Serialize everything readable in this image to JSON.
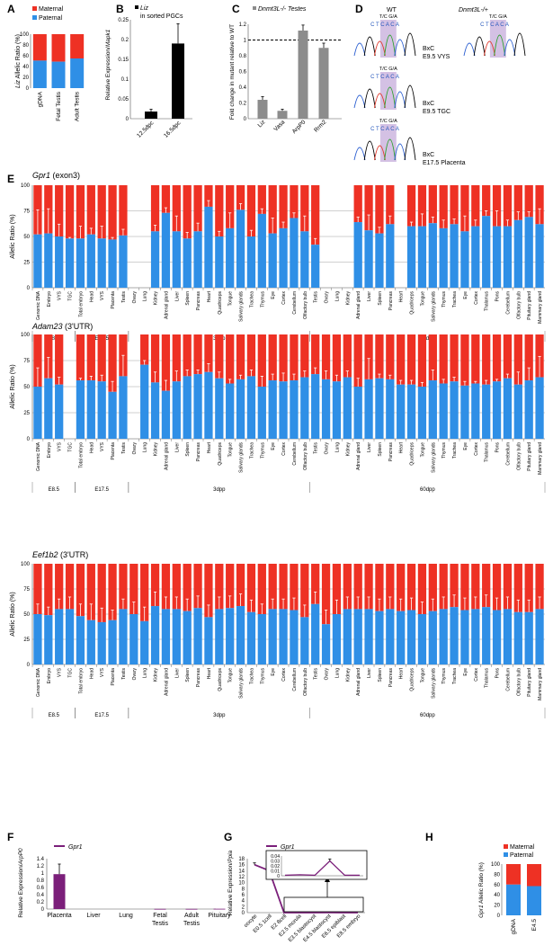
{
  "panel_letters": [
    "A",
    "B",
    "C",
    "D",
    "E",
    "F",
    "G",
    "H"
  ],
  "colors": {
    "maternal": "#ee3124",
    "paternal": "#2f8fe6",
    "dark": "#000000",
    "grey": "#8c8c8c",
    "purple": "#7b1f7a",
    "ax": "#555555"
  },
  "panelA": {
    "ylabel_pre": "Liz",
    "ylabel_post": " Allelic Ratio (%)",
    "legend": [
      "Maternal",
      "Paternal"
    ],
    "yticks": [
      "0",
      "20",
      "40",
      "60",
      "80",
      "100"
    ],
    "categories": [
      "gDNA",
      "Fetal Testis",
      "Adult Testis"
    ]
  },
  "panelB": {
    "ylabel_pre": "Relative Expression/",
    "ylabel_post": "Mapk1",
    "legend_line1_pre": "",
    "legend_line1_it": "Liz",
    "legend_line2": "in sorted PGCs",
    "yticks": [
      "0",
      "0.05",
      "0.1",
      "0.15",
      "0.2",
      "0.25"
    ],
    "categories": [
      "12.5dpc",
      "16.5dpc"
    ]
  },
  "panelC": {
    "legend": "Dnmt3L-/- Testes",
    "ylabel": "Fold change in mutant relative to WT",
    "yticks": [
      "0",
      "0.2",
      "0.4",
      "0.6",
      "0.8",
      "1",
      "1.2"
    ],
    "categories": [
      "Liz",
      "Vasa",
      "ArpP0",
      "Rrm2"
    ]
  },
  "panelD": {
    "wt_label": "WT",
    "mut_label": "Dnmt3L-/+",
    "bases": "C T C A C A",
    "polym": "T/C G/A",
    "rows": [
      "BxC E9.5 VYS",
      "BxC E9.5 TGC",
      "BxC E17.5 Placenta"
    ]
  },
  "panelE": {
    "ylabel": "Allelic Ratio (%)",
    "yticks": [
      "0",
      "25",
      "50",
      "75",
      "100"
    ],
    "titles": [
      {
        "gene": "Gpr1",
        "suffix": " (exon3)"
      },
      {
        "gene": "Adam23",
        "suffix": " (3'UTR)"
      },
      {
        "gene": "Eef1b2",
        "suffix": " (3'UTR)"
      }
    ],
    "tissues": [
      "Genomic DNA",
      "Embryo",
      "VYS",
      "TGC",
      "Total embryo",
      "Head",
      "VYS",
      "Placenta",
      "Testis",
      "Ovary",
      "Lung",
      "Kidney",
      "Adrenal gland",
      "Liver",
      "Spleen",
      "Pancreas",
      "Heart",
      "Quadriceps",
      "Tongue",
      "Salivary glands",
      "Trachea",
      "Thymus",
      "Eye",
      "Cortex",
      "Cerebellum",
      "Olfactory bulb",
      "Testis",
      "Ovary",
      "Lung",
      "Kidney",
      "Adrenal gland",
      "Liver",
      "Spleen",
      "Pancreas",
      "Heart",
      "Quadriceps",
      "Tongue",
      "Salivary glands",
      "Thymus",
      "Trachea",
      "Eye",
      "Cortex",
      "Thalamus",
      "Pons",
      "Cerebellum",
      "Olfactory bulb",
      "Pituitary gland",
      "Mammary gland"
    ],
    "groups": [
      "E8.5",
      "E17.5",
      "3dpp",
      "60dpp"
    ]
  },
  "panelF": {
    "legend": "Gpr1",
    "ylabel_pre": "Relative Expression/",
    "ylabel_post": "ArpP0",
    "yticks": [
      "0",
      "0.2",
      "0.4",
      "0.6",
      "0.8",
      "1",
      "1.2",
      "1.4"
    ],
    "categories": [
      "Placenta",
      "Liver",
      "Lung",
      "Fetal Testis",
      "Adult Testis",
      "Pituitary"
    ]
  },
  "panelG": {
    "legend": "Gpr1",
    "ylabel_pre": "Relative Expression/",
    "ylabel_post": "Ppia",
    "yticks": [
      "0",
      "2",
      "4",
      "6",
      "8",
      "10",
      "12",
      "14",
      "16",
      "18"
    ],
    "inset_yticks": [
      "0",
      "0.01",
      "0.02",
      "0.03",
      "0.04"
    ],
    "categories": [
      "oocyte",
      "E0.5 1cell",
      "E2 8cell",
      "E2.5 morula",
      "E3.5 blastocyst",
      "E4.5 blastocyst",
      "E6.5 epiblast",
      "E8.5 embryo"
    ]
  },
  "panelH": {
    "ylabel_pre": "Gpr1",
    "ylabel_post": " Allelic Ratio (%)",
    "legend": [
      "Maternal",
      "Paternal"
    ],
    "yticks": [
      "0",
      "20",
      "40",
      "60",
      "80",
      "100"
    ],
    "categories": [
      "gDNA",
      "E4.5"
    ]
  },
  "chart_data": [
    {
      "id": "A",
      "type": "bar",
      "stacked": true,
      "ylabel": "Liz Allelic Ratio (%)",
      "categories": [
        "gDNA",
        "Fetal Testis",
        "Adult Testis"
      ],
      "series": [
        {
          "name": "Paternal",
          "values": [
            51,
            49,
            55
          ]
        },
        {
          "name": "Maternal",
          "values": [
            49,
            51,
            45
          ]
        }
      ],
      "ylim": [
        0,
        100
      ],
      "legend": "top-left"
    },
    {
      "id": "B",
      "type": "bar",
      "ylabel": "Relative Expression/Mapk1",
      "series": [
        {
          "name": "Liz in sorted PGCs",
          "values": [
            0.018,
            0.19
          ]
        }
      ],
      "categories": [
        "12.5dpc",
        "16.5dpc"
      ],
      "errors": [
        0.006,
        0.05
      ],
      "ylim": [
        0,
        0.25
      ]
    },
    {
      "id": "C",
      "type": "bar",
      "ylabel": "Fold change in mutant relative to WT",
      "series": [
        {
          "name": "Dnmt3L-/- Testes",
          "values": [
            0.24,
            0.1,
            1.12,
            0.9
          ]
        }
      ],
      "categories": [
        "Liz",
        "Vasa",
        "ArpP0",
        "Rrm2"
      ],
      "errors": [
        0.04,
        0.02,
        0.07,
        0.06
      ],
      "ylim": [
        0,
        1.2
      ],
      "reference_line": 1
    },
    {
      "id": "E1",
      "type": "bar",
      "stacked": true,
      "title": "Gpr1 (exon3)",
      "ylabel": "Allelic Ratio (%)",
      "ylim": [
        0,
        100
      ],
      "paternal": [
        52,
        53,
        50,
        48,
        48,
        52,
        48,
        47,
        51,
        null,
        null,
        55,
        73,
        55,
        48,
        55,
        79,
        50,
        58,
        76,
        50,
        72,
        53,
        58,
        68,
        55,
        42,
        null,
        null,
        null,
        64,
        56,
        53,
        62,
        null,
        60,
        60,
        63,
        58,
        62,
        55,
        60,
        70,
        60,
        60,
        66,
        69,
        62
      ],
      "errors": [
        24,
        24,
        12,
        1,
        12,
        6,
        12,
        2,
        6,
        null,
        null,
        6,
        5,
        15,
        6,
        8,
        6,
        5,
        15,
        6,
        6,
        5,
        15,
        6,
        5,
        15,
        6,
        null,
        null,
        null,
        5,
        15,
        6,
        8,
        null,
        4,
        12,
        6,
        8,
        5,
        15,
        6,
        5,
        15,
        6,
        8,
        5,
        15
      ]
    },
    {
      "id": "E2",
      "type": "bar",
      "stacked": true,
      "title": "Adam23 (3'UTR)",
      "ylabel": "Allelic Ratio (%)",
      "ylim": [
        0,
        100
      ],
      "paternal": [
        50,
        58,
        52,
        null,
        56,
        56,
        55,
        45,
        60,
        null,
        71,
        54,
        46,
        55,
        60,
        62,
        64,
        58,
        53,
        57,
        60,
        50,
        56,
        55,
        56,
        59,
        62,
        57,
        55,
        59,
        50,
        57,
        58,
        57,
        52,
        52,
        50,
        56,
        53,
        55,
        51,
        53,
        52,
        55,
        58,
        52,
        56,
        59
      ],
      "errors": [
        18,
        20,
        7,
        null,
        2,
        4,
        6,
        10,
        20,
        null,
        4,
        10,
        10,
        10,
        6,
        4,
        8,
        6,
        4,
        4,
        6,
        10,
        6,
        8,
        6,
        6,
        6,
        8,
        6,
        6,
        8,
        20,
        4,
        4,
        4,
        4,
        4,
        10,
        4,
        4,
        4,
        2,
        4,
        2,
        4,
        12,
        12,
        20
      ]
    },
    {
      "id": "E3",
      "type": "bar",
      "stacked": true,
      "title": "Eef1b2 (3'UTR)",
      "ylabel": "Allelic Ratio (%)",
      "ylim": [
        0,
        100
      ],
      "paternal": [
        50,
        49,
        55,
        55,
        48,
        44,
        42,
        44,
        55,
        50,
        43,
        58,
        55,
        55,
        53,
        56,
        47,
        55,
        56,
        58,
        52,
        50,
        55,
        55,
        54,
        47,
        60,
        40,
        50,
        55,
        55,
        55,
        53,
        55,
        53,
        54,
        50,
        53,
        55,
        57,
        54,
        55,
        57,
        54,
        55,
        52,
        52,
        55
      ],
      "errors": [
        10,
        8,
        10,
        12,
        12,
        16,
        14,
        10,
        10,
        12,
        14,
        14,
        12,
        12,
        12,
        12,
        12,
        12,
        12,
        12,
        12,
        10,
        10,
        10,
        12,
        12,
        12,
        14,
        14,
        12,
        12,
        12,
        12,
        12,
        12,
        12,
        12,
        12,
        12,
        12,
        12,
        12,
        12,
        12,
        12,
        12,
        12,
        12
      ]
    },
    {
      "id": "F",
      "type": "bar",
      "ylabel": "Relative Expression/ArpP0",
      "categories": [
        "Placenta",
        "Liver",
        "Lung",
        "Fetal Testis",
        "Adult Testis",
        "Pituitary"
      ],
      "series": [
        {
          "name": "Gpr1",
          "values": [
            0.97,
            0,
            0,
            0.005,
            0.005,
            0.008
          ]
        }
      ],
      "errors": [
        0.28,
        0,
        0,
        0,
        0,
        0
      ],
      "ylim": [
        0,
        1.4
      ]
    },
    {
      "id": "G",
      "type": "line",
      "ylabel": "Relative Expression/Ppia",
      "categories": [
        "oocyte",
        "E0.5 1cell",
        "E2 8cell",
        "E2.5 morula",
        "E3.5 blastocyst",
        "E4.5 blastocyst",
        "E6.5 epiblast",
        "E8.5 embryo"
      ],
      "series": [
        {
          "name": "Gpr1",
          "values": [
            16,
            14,
            0.001,
            0.002,
            0.001,
            0.03,
            0.001,
            0.001
          ]
        }
      ],
      "ylim": [
        0,
        18
      ],
      "inset_ylim": [
        0,
        0.04
      ]
    },
    {
      "id": "H",
      "type": "bar",
      "stacked": true,
      "ylabel": "Gpr1 Allelic Ratio (%)",
      "categories": [
        "gDNA",
        "E4.5"
      ],
      "series": [
        {
          "name": "Paternal",
          "values": [
            60,
            57
          ]
        },
        {
          "name": "Maternal",
          "values": [
            40,
            43
          ]
        }
      ],
      "ylim": [
        0,
        100
      ],
      "legend": "top"
    }
  ]
}
